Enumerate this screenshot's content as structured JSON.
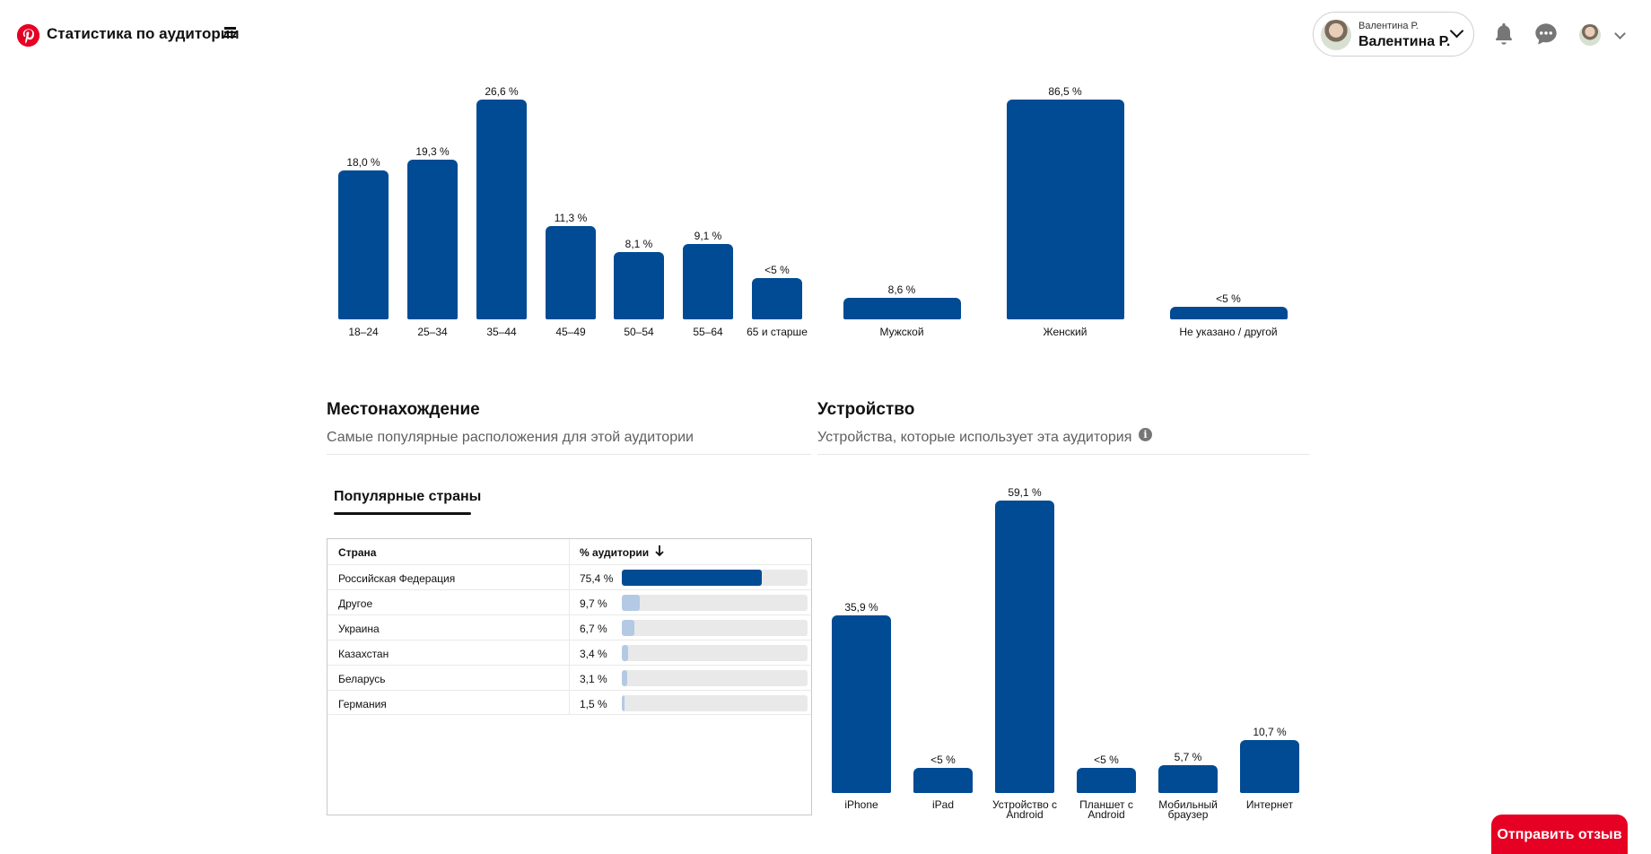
{
  "header": {
    "app_title": "Статистика по аудитории",
    "account_small": "Валентина Р.",
    "account_big": "Валентина Р."
  },
  "colors": {
    "accent": "#004b93",
    "brand": "#e60023",
    "bar_light": "#b4c9e4",
    "track": "#e9e9e9"
  },
  "chart_data": [
    {
      "type": "bar",
      "categories": [
        "18–24",
        "25–34",
        "35–44",
        "45–49",
        "50–54",
        "55–64",
        "65 и старше"
      ],
      "values": [
        18.0,
        19.3,
        26.6,
        11.3,
        8.1,
        9.1,
        5
      ],
      "value_labels": [
        "18,0 %",
        "19,3 %",
        "26,6 %",
        "11,3 %",
        "8,1 %",
        "9,1 %",
        "<5 %"
      ],
      "ylim": [
        0,
        26.6
      ],
      "grid": false
    },
    {
      "type": "bar",
      "categories": [
        "Мужской",
        "Женский",
        "Не указано / другой"
      ],
      "values": [
        8.6,
        86.5,
        5
      ],
      "value_labels": [
        "8,6 %",
        "86,5 %",
        "<5 %"
      ],
      "ylim": [
        0,
        86.5
      ],
      "grid": false
    },
    {
      "type": "bar",
      "categories": [
        "iPhone",
        "iPad",
        "Устройство с Android",
        "Планшет с Android",
        "Мобильный браузер",
        "Интернет"
      ],
      "values": [
        35.9,
        5,
        59.1,
        5,
        5.7,
        10.7
      ],
      "value_labels": [
        "35,9 %",
        "<5 %",
        "59,1 %",
        "<5 %",
        "5,7 %",
        "10,7 %"
      ],
      "ylim": [
        0,
        59.1
      ],
      "grid": false
    }
  ],
  "location": {
    "title": "Местонахождение",
    "subtitle": "Самые популярные расположения для этой аудитории",
    "tab": "Популярные страны",
    "col_country": "Страна",
    "col_pct": "% аудитории",
    "rows": [
      {
        "country": "Российская Федерация",
        "pct_label": "75,4 %",
        "pct": 75.4
      },
      {
        "country": "Другое",
        "pct_label": "9,7 %",
        "pct": 9.7
      },
      {
        "country": "Украина",
        "pct_label": "6,7 %",
        "pct": 6.7
      },
      {
        "country": "Казахстан",
        "pct_label": "3,4 %",
        "pct": 3.4
      },
      {
        "country": "Беларусь",
        "pct_label": "3,1 %",
        "pct": 3.1
      },
      {
        "country": "Германия",
        "pct_label": "1,5 %",
        "pct": 1.5
      }
    ]
  },
  "device": {
    "title": "Устройство",
    "subtitle": "Устройства, которые использует эта аудитория"
  },
  "feedback": {
    "label": "Отправить отзыв"
  }
}
